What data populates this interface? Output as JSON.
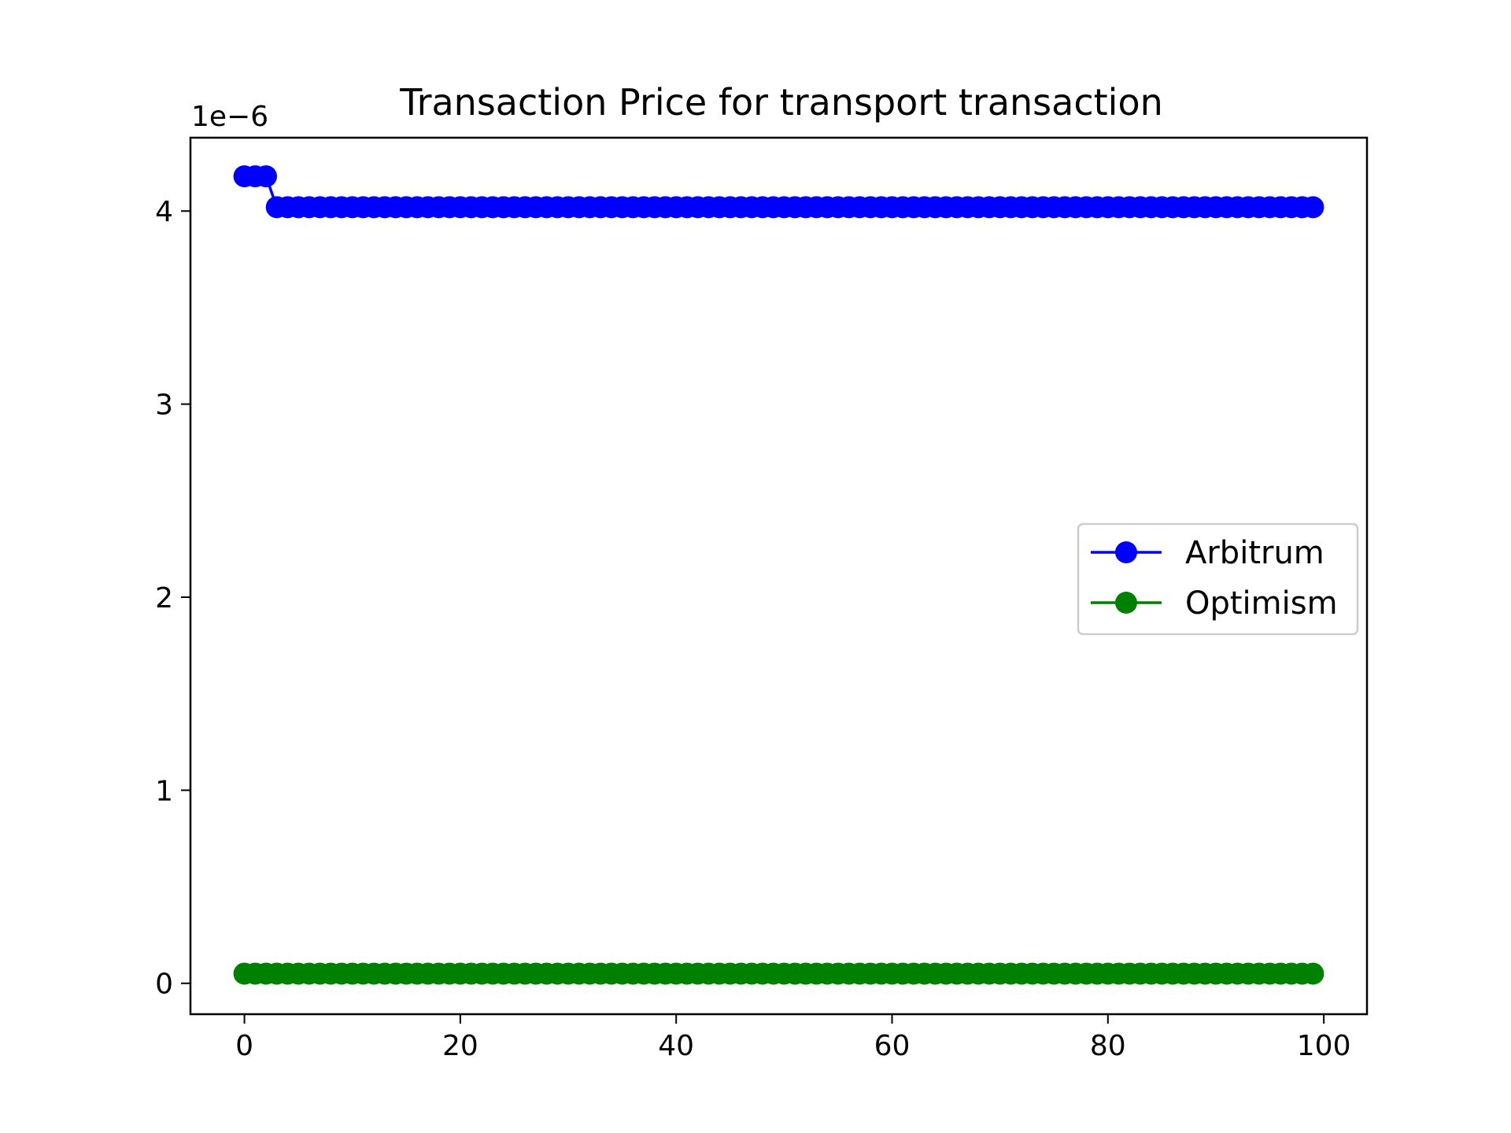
{
  "chart_data": {
    "type": "line",
    "title": "Transaction Price for transport transaction",
    "xlabel": "",
    "ylabel": "",
    "y_offset_label": "1e−6",
    "xlim": [
      -5,
      104
    ],
    "ylim": [
      -1.6e-07,
      4.38e-06
    ],
    "x_ticks": [
      0,
      20,
      40,
      60,
      80,
      100
    ],
    "x_tick_labels": [
      "0",
      "20",
      "40",
      "60",
      "80",
      "100"
    ],
    "y_ticks": [
      0,
      1e-06,
      2e-06,
      3e-06,
      4e-06
    ],
    "y_tick_labels": [
      "0",
      "1",
      "2",
      "3",
      "4"
    ],
    "grid": false,
    "legend_position": "center-right",
    "x_start": 0,
    "x_step": 1,
    "point_count": 100,
    "series": [
      {
        "name": "Arbitrum",
        "color": "#0000ff",
        "marker": "circle",
        "leading_values": [
          4.18e-06,
          4.18e-06,
          4.18e-06
        ],
        "constant_value": 4.02e-06
      },
      {
        "name": "Optimism",
        "color": "#008000",
        "marker": "circle",
        "leading_values": [],
        "constant_value": 5e-08
      }
    ]
  }
}
